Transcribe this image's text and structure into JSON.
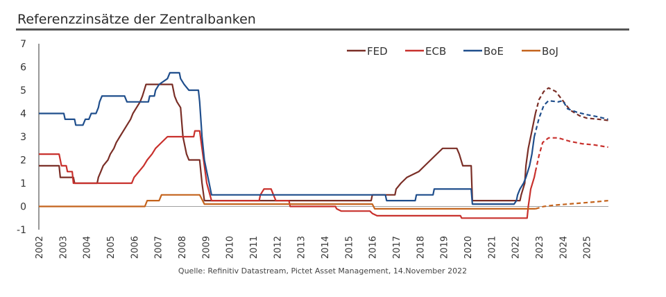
{
  "header": {
    "title": "Referenzzinsätze der Zentralbanken"
  },
  "source": "Quelle: Refinitiv Datastream, Pictet Asset Management, 14.November 2022",
  "chart_data": {
    "type": "line",
    "title": "Referenzzinsätze der Zentralbanken",
    "xlabel": "",
    "ylabel": "",
    "xlim": [
      2002,
      2026
    ],
    "ylim": [
      -1,
      7
    ],
    "y_ticks": [
      "7",
      "6",
      "5",
      "4",
      "3",
      "2",
      "1",
      "0",
      "-1"
    ],
    "y_tick_values": [
      7,
      6,
      5,
      4,
      3,
      2,
      1,
      0,
      -1
    ],
    "x_ticks": [
      "2002",
      "2003",
      "2004",
      "2005",
      "2006",
      "2007",
      "2008",
      "2009",
      "2010",
      "2011",
      "2012",
      "2013",
      "2014",
      "2015",
      "2016",
      "2017",
      "2018",
      "2019",
      "2020",
      "2021",
      "2022",
      "2023",
      "2024",
      "2025"
    ],
    "x_tick_values": [
      2002,
      2003,
      2004,
      2005,
      2006,
      2007,
      2008,
      2009,
      2010,
      2011,
      2012,
      2013,
      2014,
      2015,
      2016,
      2017,
      2018,
      2019,
      2020,
      2021,
      2022,
      2023,
      2024,
      2025
    ],
    "grid": false,
    "legend_position": "top-right",
    "forecast_start_note": "dashed segments are projections",
    "series": [
      {
        "name": "FED",
        "color": "#7a2e26",
        "actual": [
          [
            2002.0,
            1.75
          ],
          [
            2002.85,
            1.75
          ],
          [
            2002.9,
            1.25
          ],
          [
            2003.45,
            1.25
          ],
          [
            2003.5,
            1.0
          ],
          [
            2004.45,
            1.0
          ],
          [
            2004.5,
            1.25
          ],
          [
            2004.6,
            1.5
          ],
          [
            2004.7,
            1.75
          ],
          [
            2004.9,
            2.0
          ],
          [
            2005.0,
            2.25
          ],
          [
            2005.15,
            2.5
          ],
          [
            2005.25,
            2.75
          ],
          [
            2005.4,
            3.0
          ],
          [
            2005.55,
            3.25
          ],
          [
            2005.7,
            3.5
          ],
          [
            2005.85,
            3.75
          ],
          [
            2005.95,
            4.0
          ],
          [
            2006.1,
            4.25
          ],
          [
            2006.25,
            4.5
          ],
          [
            2006.35,
            4.75
          ],
          [
            2006.5,
            5.25
          ],
          [
            2007.6,
            5.25
          ],
          [
            2007.7,
            4.75
          ],
          [
            2007.8,
            4.5
          ],
          [
            2007.95,
            4.25
          ],
          [
            2008.05,
            3.0
          ],
          [
            2008.2,
            2.25
          ],
          [
            2008.3,
            2.0
          ],
          [
            2008.75,
            2.0
          ],
          [
            2008.8,
            1.5
          ],
          [
            2008.85,
            1.0
          ],
          [
            2008.95,
            0.25
          ],
          [
            2015.95,
            0.25
          ],
          [
            2016.0,
            0.5
          ],
          [
            2016.95,
            0.5
          ],
          [
            2017.0,
            0.75
          ],
          [
            2017.2,
            1.0
          ],
          [
            2017.45,
            1.25
          ],
          [
            2017.95,
            1.5
          ],
          [
            2018.2,
            1.75
          ],
          [
            2018.45,
            2.0
          ],
          [
            2018.7,
            2.25
          ],
          [
            2018.95,
            2.5
          ],
          [
            2019.55,
            2.5
          ],
          [
            2019.65,
            2.25
          ],
          [
            2019.8,
            1.75
          ],
          [
            2020.15,
            1.75
          ],
          [
            2020.2,
            0.25
          ],
          [
            2022.2,
            0.25
          ],
          [
            2022.25,
            0.5
          ],
          [
            2022.4,
            1.0
          ],
          [
            2022.45,
            1.75
          ],
          [
            2022.55,
            2.5
          ],
          [
            2022.7,
            3.25
          ],
          [
            2022.85,
            4.0
          ]
        ],
        "forecast": [
          [
            2022.85,
            4.0
          ],
          [
            2023.0,
            4.6
          ],
          [
            2023.2,
            4.95
          ],
          [
            2023.4,
            5.1
          ],
          [
            2023.7,
            4.95
          ],
          [
            2024.0,
            4.55
          ],
          [
            2024.3,
            4.15
          ],
          [
            2024.7,
            3.9
          ],
          [
            2025.0,
            3.8
          ],
          [
            2025.5,
            3.75
          ],
          [
            2025.9,
            3.7
          ]
        ]
      },
      {
        "name": "ECB",
        "color": "#c8302c",
        "actual": [
          [
            2002.0,
            2.25
          ],
          [
            2002.85,
            2.25
          ],
          [
            2002.95,
            1.75
          ],
          [
            2003.15,
            1.75
          ],
          [
            2003.2,
            1.5
          ],
          [
            2003.4,
            1.5
          ],
          [
            2003.45,
            1.0
          ],
          [
            2005.9,
            1.0
          ],
          [
            2006.0,
            1.25
          ],
          [
            2006.2,
            1.5
          ],
          [
            2006.4,
            1.75
          ],
          [
            2006.55,
            2.0
          ],
          [
            2006.75,
            2.25
          ],
          [
            2006.9,
            2.5
          ],
          [
            2007.15,
            2.75
          ],
          [
            2007.4,
            3.0
          ],
          [
            2008.5,
            3.0
          ],
          [
            2008.55,
            3.25
          ],
          [
            2008.75,
            3.25
          ],
          [
            2008.85,
            2.5
          ],
          [
            2008.95,
            1.75
          ],
          [
            2009.05,
            1.0
          ],
          [
            2009.25,
            0.25
          ],
          [
            2011.25,
            0.25
          ],
          [
            2011.3,
            0.5
          ],
          [
            2011.45,
            0.75
          ],
          [
            2011.75,
            0.75
          ],
          [
            2011.85,
            0.5
          ],
          [
            2011.95,
            0.25
          ],
          [
            2012.5,
            0.25
          ],
          [
            2012.55,
            0.0
          ],
          [
            2014.45,
            0.0
          ],
          [
            2014.5,
            -0.1
          ],
          [
            2014.7,
            -0.2
          ],
          [
            2015.9,
            -0.2
          ],
          [
            2016.0,
            -0.3
          ],
          [
            2016.2,
            -0.4
          ],
          [
            2019.7,
            -0.4
          ],
          [
            2019.75,
            -0.5
          ],
          [
            2022.5,
            -0.5
          ],
          [
            2022.55,
            0.0
          ],
          [
            2022.65,
            0.75
          ],
          [
            2022.8,
            1.25
          ],
          [
            2022.85,
            1.5
          ]
        ],
        "forecast": [
          [
            2022.85,
            1.5
          ],
          [
            2023.0,
            2.2
          ],
          [
            2023.15,
            2.75
          ],
          [
            2023.4,
            2.95
          ],
          [
            2023.8,
            2.95
          ],
          [
            2024.3,
            2.8
          ],
          [
            2024.8,
            2.7
          ],
          [
            2025.3,
            2.65
          ],
          [
            2025.9,
            2.55
          ]
        ]
      },
      {
        "name": "BoE",
        "color": "#1f4e8c",
        "actual": [
          [
            2002.0,
            4.0
          ],
          [
            2003.05,
            4.0
          ],
          [
            2003.1,
            3.75
          ],
          [
            2003.5,
            3.75
          ],
          [
            2003.55,
            3.5
          ],
          [
            2003.85,
            3.5
          ],
          [
            2003.95,
            3.75
          ],
          [
            2004.1,
            3.75
          ],
          [
            2004.2,
            4.0
          ],
          [
            2004.4,
            4.0
          ],
          [
            2004.5,
            4.25
          ],
          [
            2004.55,
            4.5
          ],
          [
            2004.65,
            4.75
          ],
          [
            2005.6,
            4.75
          ],
          [
            2005.7,
            4.5
          ],
          [
            2006.6,
            4.5
          ],
          [
            2006.65,
            4.75
          ],
          [
            2006.85,
            4.75
          ],
          [
            2006.9,
            5.0
          ],
          [
            2007.05,
            5.25
          ],
          [
            2007.4,
            5.5
          ],
          [
            2007.5,
            5.75
          ],
          [
            2007.9,
            5.75
          ],
          [
            2007.95,
            5.5
          ],
          [
            2008.1,
            5.25
          ],
          [
            2008.3,
            5.0
          ],
          [
            2008.7,
            5.0
          ],
          [
            2008.75,
            4.5
          ],
          [
            2008.85,
            3.0
          ],
          [
            2008.95,
            2.0
          ],
          [
            2009.05,
            1.5
          ],
          [
            2009.15,
            1.0
          ],
          [
            2009.25,
            0.5
          ],
          [
            2016.55,
            0.5
          ],
          [
            2016.6,
            0.25
          ],
          [
            2017.8,
            0.25
          ],
          [
            2017.85,
            0.5
          ],
          [
            2018.55,
            0.5
          ],
          [
            2018.6,
            0.75
          ],
          [
            2020.15,
            0.75
          ],
          [
            2020.2,
            0.1
          ],
          [
            2021.95,
            0.1
          ],
          [
            2022.05,
            0.25
          ],
          [
            2022.1,
            0.5
          ],
          [
            2022.2,
            0.75
          ],
          [
            2022.35,
            1.0
          ],
          [
            2022.45,
            1.25
          ],
          [
            2022.6,
            1.75
          ],
          [
            2022.7,
            2.25
          ],
          [
            2022.8,
            3.0
          ]
        ],
        "forecast": [
          [
            2022.8,
            3.0
          ],
          [
            2023.0,
            3.8
          ],
          [
            2023.2,
            4.35
          ],
          [
            2023.4,
            4.55
          ],
          [
            2023.8,
            4.5
          ],
          [
            2024.0,
            4.55
          ],
          [
            2024.2,
            4.2
          ],
          [
            2024.6,
            4.05
          ],
          [
            2025.0,
            3.95
          ],
          [
            2025.5,
            3.85
          ],
          [
            2025.9,
            3.75
          ]
        ]
      },
      {
        "name": "BoJ",
        "color": "#c4631c",
        "actual": [
          [
            2002.0,
            0.0
          ],
          [
            2006.45,
            0.0
          ],
          [
            2006.55,
            0.25
          ],
          [
            2007.05,
            0.25
          ],
          [
            2007.15,
            0.5
          ],
          [
            2008.75,
            0.5
          ],
          [
            2008.85,
            0.3
          ],
          [
            2008.95,
            0.1
          ],
          [
            2016.0,
            0.1
          ],
          [
            2016.1,
            -0.1
          ],
          [
            2022.85,
            -0.1
          ]
        ],
        "forecast": [
          [
            2022.85,
            -0.1
          ],
          [
            2023.2,
            0.0
          ],
          [
            2023.6,
            0.05
          ],
          [
            2024.2,
            0.1
          ],
          [
            2024.8,
            0.15
          ],
          [
            2025.4,
            0.2
          ],
          [
            2025.9,
            0.25
          ]
        ]
      }
    ]
  }
}
